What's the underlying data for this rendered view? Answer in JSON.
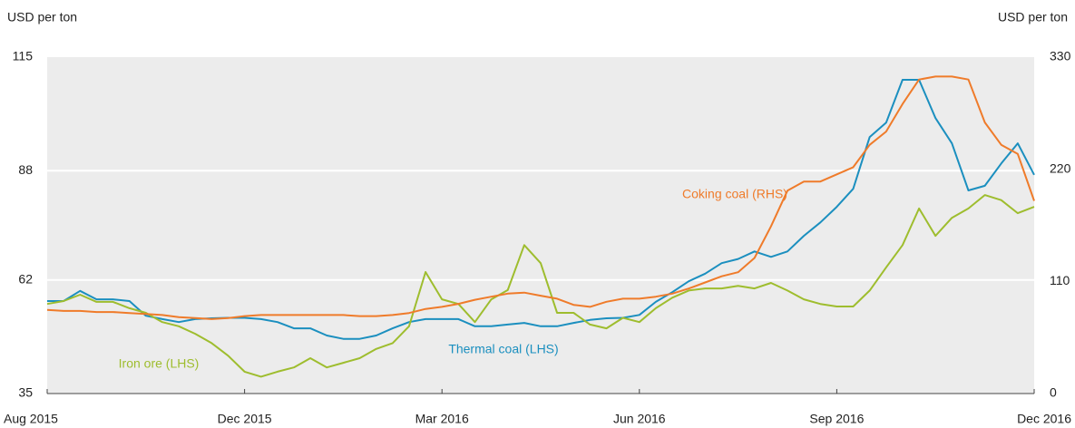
{
  "chart_data": {
    "type": "line",
    "ylabel": "USD per ton",
    "y2label": "USD per ton",
    "categories": [
      "Aug 2015",
      null,
      null,
      null,
      null,
      null,
      null,
      null,
      null,
      null,
      null,
      null,
      "Dec 2015",
      null,
      null,
      null,
      null,
      null,
      null,
      null,
      null,
      null,
      null,
      null,
      "Mar 2016",
      null,
      null,
      null,
      null,
      null,
      null,
      null,
      null,
      null,
      null,
      null,
      "Jun 2016",
      null,
      null,
      null,
      null,
      null,
      null,
      null,
      null,
      null,
      null,
      null,
      "Sep 2016",
      null,
      null,
      null,
      null,
      null,
      null,
      null,
      null,
      null,
      null,
      null,
      "Dec 2016"
    ],
    "ylim": [
      35,
      115
    ],
    "yticks": [
      35,
      62,
      88,
      115
    ],
    "y2lim": [
      0,
      330
    ],
    "y2ticks": [
      0,
      110,
      220,
      330
    ],
    "grid": true,
    "series": [
      {
        "name": "Thermal coal (LHS)",
        "color": "#1b8fbf",
        "axis": "y",
        "values": [
          57,
          57,
          59.4,
          57.4,
          57.4,
          57,
          53.5,
          52.7,
          52,
          52.7,
          52.9,
          53,
          53,
          52.7,
          52,
          50.5,
          50.5,
          48.8,
          48,
          48,
          48.8,
          50.5,
          52,
          52.7,
          52.7,
          52.7,
          51,
          51,
          51.4,
          51.8,
          51,
          51,
          51.8,
          52.5,
          52.9,
          53,
          53.7,
          56.8,
          59.1,
          61.7,
          63.5,
          66,
          67,
          68.8,
          67.5,
          68.8,
          72.5,
          75.7,
          79.4,
          83.7,
          96,
          99.4,
          109.6,
          109.6,
          100.5,
          94.5,
          83.3,
          84.4,
          89.7,
          94.5,
          87
        ]
      },
      {
        "name": "Iron ore (LHS)",
        "color": "#9ebd2e",
        "axis": "y",
        "values": [
          56.3,
          57,
          58.5,
          56.8,
          56.8,
          55.3,
          54.2,
          52,
          51,
          49.2,
          47,
          44,
          40.2,
          39,
          40.2,
          41.2,
          43.4,
          41.2,
          42.3,
          43.4,
          45.6,
          47,
          51,
          63.9,
          57.4,
          56.3,
          52,
          57.4,
          59.6,
          70.3,
          66,
          54.2,
          54.2,
          51.4,
          50.5,
          53,
          52,
          55.3,
          57.8,
          59.5,
          60,
          60,
          60.6,
          60,
          61.3,
          59.5,
          57.4,
          56.3,
          55.7,
          55.7,
          59.5,
          65,
          70.3,
          79,
          72.5,
          76.8,
          79,
          82.2,
          81,
          77.9,
          79.4
        ]
      },
      {
        "name": "Coking coal (RHS)",
        "color": "#ef7b2a",
        "axis": "y2",
        "values": [
          82,
          81,
          81,
          80,
          80,
          79,
          78,
          77,
          75,
          74,
          73,
          74,
          76,
          77,
          77,
          77,
          77,
          77,
          77,
          76,
          76,
          77,
          79,
          83,
          85,
          88,
          92,
          95,
          98,
          99,
          96,
          93,
          87,
          85,
          90,
          93,
          93,
          95,
          98,
          103,
          109,
          115,
          119,
          133,
          164,
          199,
          208,
          208,
          215,
          222,
          244,
          257,
          284,
          308,
          311,
          311,
          308,
          266,
          244,
          235,
          189
        ]
      }
    ]
  }
}
